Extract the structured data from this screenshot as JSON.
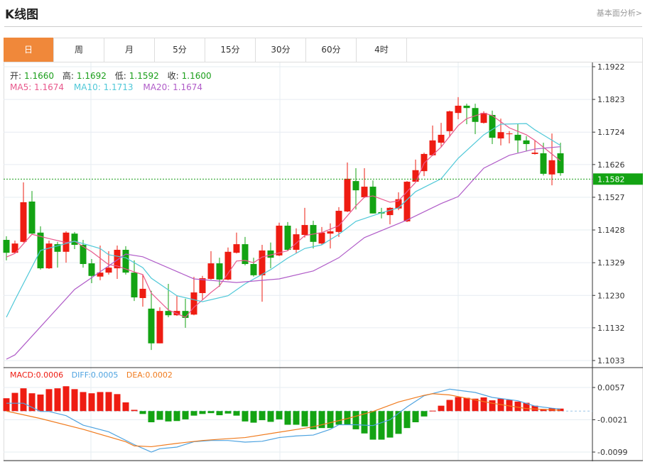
{
  "header": {
    "title": "K线图",
    "link": "基本面分析>"
  },
  "tabs": [
    {
      "label": "日",
      "active": true
    },
    {
      "label": "周"
    },
    {
      "label": "月"
    },
    {
      "label": "5分"
    },
    {
      "label": "15分"
    },
    {
      "label": "30分"
    },
    {
      "label": "60分"
    },
    {
      "label": "4时"
    }
  ],
  "ohlc_info": {
    "open_label": "开:",
    "open": "1.1660",
    "high_label": "高:",
    "high": "1.1692",
    "low_label": "低:",
    "low": "1.1592",
    "close_label": "收:",
    "close": "1.1600"
  },
  "ma_info": {
    "ma5": "MA5: 1.1674",
    "ma10": "MA10: 1.1713",
    "ma20": "MA20: 1.1674"
  },
  "macd_info": {
    "macd": "MACD:0.0006",
    "diff": "DIFF:0.0005",
    "dea": "DEA:0.0002"
  },
  "colors": {
    "up": "#ee1c12",
    "down": "#13a313",
    "ma5": "#e8588c",
    "ma10": "#4fc8d8",
    "ma20": "#b05cc8",
    "diff": "#4ea3e0",
    "dea": "#f07b1e",
    "active_tab": "#f0883a"
  },
  "chart_data": [
    {
      "type": "candlestick",
      "y_ticks": [
        "1.1922",
        "1.1823",
        "1.1724",
        "1.1626",
        "1.1527",
        "1.1428",
        "1.1329",
        "1.1230",
        "1.1132",
        "1.1033"
      ],
      "ylim": [
        1.1033,
        1.1922
      ],
      "grid": true,
      "current_price": "1.1582",
      "candles": [
        [
          1.1398,
          1.1409,
          1.1336,
          1.1359
        ],
        [
          1.1359,
          1.1396,
          1.1357,
          1.1387
        ],
        [
          1.1392,
          1.1572,
          1.139,
          1.1512
        ],
        [
          1.1514,
          1.1546,
          1.1413,
          1.1417
        ],
        [
          1.142,
          1.1439,
          1.1308,
          1.1312
        ],
        [
          1.1312,
          1.1396,
          1.131,
          1.1387
        ],
        [
          1.1385,
          1.1392,
          1.1314,
          1.1362
        ],
        [
          1.1362,
          1.1424,
          1.1329,
          1.142
        ],
        [
          1.1417,
          1.1422,
          1.137,
          1.1383
        ],
        [
          1.1383,
          1.1398,
          1.1314,
          1.1325
        ],
        [
          1.1327,
          1.134,
          1.1267,
          1.1289
        ],
        [
          1.1287,
          1.1381,
          1.1276,
          1.1299
        ],
        [
          1.1299,
          1.1364,
          1.1293,
          1.1314
        ],
        [
          1.1312,
          1.1381,
          1.128,
          1.1368
        ],
        [
          1.1368,
          1.1379,
          1.1293,
          1.1299
        ],
        [
          1.1299,
          1.1336,
          1.1213,
          1.1224
        ],
        [
          1.1222,
          1.1293,
          1.1196,
          1.125
        ],
        [
          1.119,
          1.1244,
          1.1065,
          1.1085
        ],
        [
          1.1085,
          1.1194,
          1.1085,
          1.1183
        ],
        [
          1.1183,
          1.1265,
          1.1164,
          1.117
        ],
        [
          1.117,
          1.1229,
          1.1168,
          1.1183
        ],
        [
          1.1183,
          1.122,
          1.1132,
          1.1162
        ],
        [
          1.1172,
          1.1286,
          1.117,
          1.1239
        ],
        [
          1.1237,
          1.1289,
          1.1218,
          1.1282
        ],
        [
          1.128,
          1.1364,
          1.1278,
          1.1327
        ],
        [
          1.1327,
          1.1344,
          1.1256,
          1.1278
        ],
        [
          1.1278,
          1.1375,
          1.1276,
          1.1362
        ],
        [
          1.1359,
          1.142,
          1.1357,
          1.1385
        ],
        [
          1.1385,
          1.1407,
          1.1321,
          1.1325
        ],
        [
          1.1325,
          1.1344,
          1.1287,
          1.1291
        ],
        [
          1.1291,
          1.1383,
          1.1211,
          1.1366
        ],
        [
          1.1366,
          1.139,
          1.1312,
          1.1344
        ],
        [
          1.1351,
          1.145,
          1.1349,
          1.1441
        ],
        [
          1.1441,
          1.1452,
          1.1366,
          1.1368
        ],
        [
          1.1368,
          1.1433,
          1.1357,
          1.1415
        ],
        [
          1.1413,
          1.1495,
          1.1405,
          1.1443
        ],
        [
          1.1443,
          1.1456,
          1.1372,
          1.1392
        ],
        [
          1.1387,
          1.1437,
          1.1383,
          1.142
        ],
        [
          1.1417,
          1.1448,
          1.1372,
          1.1424
        ],
        [
          1.1422,
          1.1497,
          1.1407,
          1.1486
        ],
        [
          1.1484,
          1.1632,
          1.1482,
          1.1583
        ],
        [
          1.1576,
          1.1615,
          1.149,
          1.1548
        ],
        [
          1.1527,
          1.1615,
          1.1525,
          1.1559
        ],
        [
          1.1559,
          1.1578,
          1.1478,
          1.1478
        ],
        [
          1.1482,
          1.1495,
          1.1463,
          1.1478
        ],
        [
          1.1473,
          1.1497,
          1.1445,
          1.1495
        ],
        [
          1.1493,
          1.1542,
          1.1488,
          1.1521
        ],
        [
          1.1454,
          1.1576,
          1.1452,
          1.1574
        ],
        [
          1.1574,
          1.1641,
          1.1572,
          1.1609
        ],
        [
          1.1606,
          1.1662,
          1.1591,
          1.1658
        ],
        [
          1.1654,
          1.1744,
          1.1652,
          1.1699
        ],
        [
          1.1692,
          1.1752,
          1.1679,
          1.1716
        ],
        [
          1.1727,
          1.1789,
          1.1709,
          1.1787
        ],
        [
          1.1782,
          1.183,
          1.1763,
          1.1804
        ],
        [
          1.1804,
          1.181,
          1.1748,
          1.1797
        ],
        [
          1.1797,
          1.181,
          1.1718,
          1.1755
        ],
        [
          1.1752,
          1.1787,
          1.175,
          1.1782
        ],
        [
          1.1776,
          1.1789,
          1.1688,
          1.1707
        ],
        [
          1.1705,
          1.1765,
          1.1684,
          1.1724
        ],
        [
          1.1718,
          1.1727,
          1.169,
          1.172
        ],
        [
          1.1716,
          1.175,
          1.1662,
          1.1699
        ],
        [
          1.1699,
          1.1712,
          1.1666,
          1.1688
        ],
        [
          1.1658,
          1.1699,
          1.1656,
          1.1662
        ],
        [
          1.166,
          1.1692,
          1.1593,
          1.1598
        ],
        [
          1.1596,
          1.172,
          1.1563,
          1.1639
        ],
        [
          1.166,
          1.1692,
          1.1592,
          1.16
        ]
      ],
      "candle_fields": [
        "open",
        "high",
        "low",
        "close"
      ],
      "ma_series": [
        {
          "name": "MA5",
          "points": [
            [
              0,
              1.1346
            ],
            [
              1,
              1.1357
            ],
            [
              3,
              1.1415
            ],
            [
              5,
              1.1402
            ],
            [
              7,
              1.139
            ],
            [
              8,
              1.1394
            ],
            [
              10,
              1.1362
            ],
            [
              12,
              1.1323
            ],
            [
              13,
              1.1319
            ],
            [
              15,
              1.1301
            ],
            [
              16,
              1.1293
            ],
            [
              17,
              1.1237
            ],
            [
              19,
              1.1186
            ],
            [
              21,
              1.1164
            ],
            [
              22,
              1.1194
            ],
            [
              24,
              1.1239
            ],
            [
              25,
              1.1259
            ],
            [
              27,
              1.1334
            ],
            [
              28,
              1.1336
            ],
            [
              29,
              1.1329
            ],
            [
              30,
              1.1346
            ],
            [
              33,
              1.1365
            ],
            [
              35,
              1.1411
            ],
            [
              37,
              1.142
            ],
            [
              39,
              1.1441
            ],
            [
              41,
              1.1501
            ],
            [
              42,
              1.1527
            ],
            [
              43,
              1.1531
            ],
            [
              45,
              1.1512
            ],
            [
              46,
              1.1516
            ],
            [
              48,
              1.1572
            ],
            [
              49,
              1.163
            ],
            [
              51,
              1.1679
            ],
            [
              53,
              1.1744
            ],
            [
              54,
              1.1765
            ],
            [
              56,
              1.1782
            ],
            [
              57,
              1.1774
            ],
            [
              59,
              1.1737
            ],
            [
              61,
              1.1716
            ],
            [
              62,
              1.1699
            ],
            [
              65,
              1.1637
            ]
          ]
        },
        {
          "name": "MA10",
          "points": [
            [
              0,
              1.1164
            ],
            [
              1,
              1.1216
            ],
            [
              4,
              1.1366
            ],
            [
              8,
              1.1394
            ],
            [
              11,
              1.1372
            ],
            [
              12,
              1.1353
            ],
            [
              14,
              1.1344
            ],
            [
              16,
              1.1314
            ],
            [
              17,
              1.1282
            ],
            [
              20,
              1.1229
            ],
            [
              23,
              1.1211
            ],
            [
              26,
              1.1229
            ],
            [
              28,
              1.1265
            ],
            [
              31,
              1.1308
            ],
            [
              33,
              1.1343
            ],
            [
              35,
              1.1372
            ],
            [
              37,
              1.1383
            ],
            [
              39,
              1.1415
            ],
            [
              41,
              1.1454
            ],
            [
              44,
              1.148
            ],
            [
              46,
              1.1495
            ],
            [
              48,
              1.1544
            ],
            [
              51,
              1.1583
            ],
            [
              53,
              1.1645
            ],
            [
              56,
              1.1716
            ],
            [
              58,
              1.1748
            ],
            [
              61,
              1.175
            ],
            [
              62,
              1.1731
            ],
            [
              65,
              1.1684
            ]
          ]
        },
        {
          "name": "MA20",
          "points": [
            [
              0,
              1.1037
            ],
            [
              1,
              1.105
            ],
            [
              8,
              1.1248
            ],
            [
              14,
              1.1355
            ],
            [
              16,
              1.1347
            ],
            [
              22,
              1.128
            ],
            [
              27,
              1.1269
            ],
            [
              32,
              1.128
            ],
            [
              36,
              1.1304
            ],
            [
              39,
              1.1344
            ],
            [
              42,
              1.1405
            ],
            [
              47,
              1.1458
            ],
            [
              51,
              1.1508
            ],
            [
              53,
              1.1529
            ],
            [
              56,
              1.1615
            ],
            [
              59,
              1.1654
            ],
            [
              62,
              1.1673
            ],
            [
              65,
              1.168
            ]
          ]
        }
      ]
    },
    {
      "type": "bar+line",
      "y_ticks": [
        "0.0057",
        "-0.0021",
        "-0.0099"
      ],
      "ylim": [
        -0.0099,
        0.0057
      ],
      "macd": [
        0.0031,
        0.0044,
        0.0055,
        0.0043,
        0.004,
        0.0053,
        0.0055,
        0.006,
        0.0053,
        0.0046,
        0.0043,
        0.0046,
        0.0046,
        0.0041,
        0.0021,
        0.0003,
        -0.0007,
        -0.0027,
        -0.0021,
        -0.0025,
        -0.0024,
        -0.002,
        -0.0011,
        -0.0007,
        -0.0005,
        -0.001,
        -0.0006,
        -0.0011,
        -0.0025,
        -0.0028,
        -0.0022,
        -0.0026,
        -0.002,
        -0.0033,
        -0.0033,
        -0.0037,
        -0.0044,
        -0.0041,
        -0.0041,
        -0.0033,
        -0.0033,
        -0.0044,
        -0.0054,
        -0.0069,
        -0.0069,
        -0.0064,
        -0.0055,
        -0.0041,
        -0.0027,
        -0.0013,
        0.0001,
        0.0013,
        0.0027,
        0.0034,
        0.0032,
        0.003,
        0.0033,
        0.0026,
        0.003,
        0.0027,
        0.0023,
        0.002,
        0.0013,
        0.0005,
        0.0007,
        0.0006
      ],
      "diff": [
        [
          0,
          0.0019
        ],
        [
          2,
          0.0019
        ],
        [
          4,
          -0.0001
        ],
        [
          5,
          -0.0001
        ],
        [
          7,
          -0.0011
        ],
        [
          9,
          -0.0034
        ],
        [
          12,
          -0.005
        ],
        [
          15,
          -0.0081
        ],
        [
          17,
          -0.0099
        ],
        [
          18,
          -0.0091
        ],
        [
          20,
          -0.0087
        ],
        [
          22,
          -0.0074
        ],
        [
          24,
          -0.0071
        ],
        [
          26,
          -0.0071
        ],
        [
          28,
          -0.0075
        ],
        [
          30,
          -0.0073
        ],
        [
          32,
          -0.0064
        ],
        [
          34,
          -0.006
        ],
        [
          36,
          -0.0058
        ],
        [
          38,
          -0.0044
        ],
        [
          39,
          -0.0033
        ],
        [
          41,
          -0.0033
        ],
        [
          43,
          -0.0035
        ],
        [
          45,
          -0.0021
        ],
        [
          47,
          0.001
        ],
        [
          49,
          0.0037
        ],
        [
          52,
          0.0053
        ],
        [
          55,
          0.0045
        ],
        [
          57,
          0.0033
        ],
        [
          60,
          0.0025
        ],
        [
          62,
          0.0012
        ],
        [
          64,
          0.0007
        ],
        [
          65,
          0.0005
        ]
      ],
      "dea": [
        [
          0,
          0.0
        ],
        [
          4,
          -0.0018
        ],
        [
          9,
          -0.0044
        ],
        [
          14,
          -0.0074
        ],
        [
          15,
          -0.0084
        ],
        [
          17,
          -0.0086
        ],
        [
          20,
          -0.0078
        ],
        [
          23,
          -0.0071
        ],
        [
          25,
          -0.0068
        ],
        [
          28,
          -0.0064
        ],
        [
          32,
          -0.0051
        ],
        [
          36,
          -0.0038
        ],
        [
          40,
          -0.0018
        ],
        [
          43,
          -0.0001
        ],
        [
          46,
          0.0022
        ],
        [
          49,
          0.0038
        ],
        [
          50,
          0.0042
        ],
        [
          52,
          0.0039
        ],
        [
          57,
          0.0019
        ],
        [
          61,
          0.0006
        ],
        [
          65,
          0.0002
        ]
      ]
    }
  ]
}
